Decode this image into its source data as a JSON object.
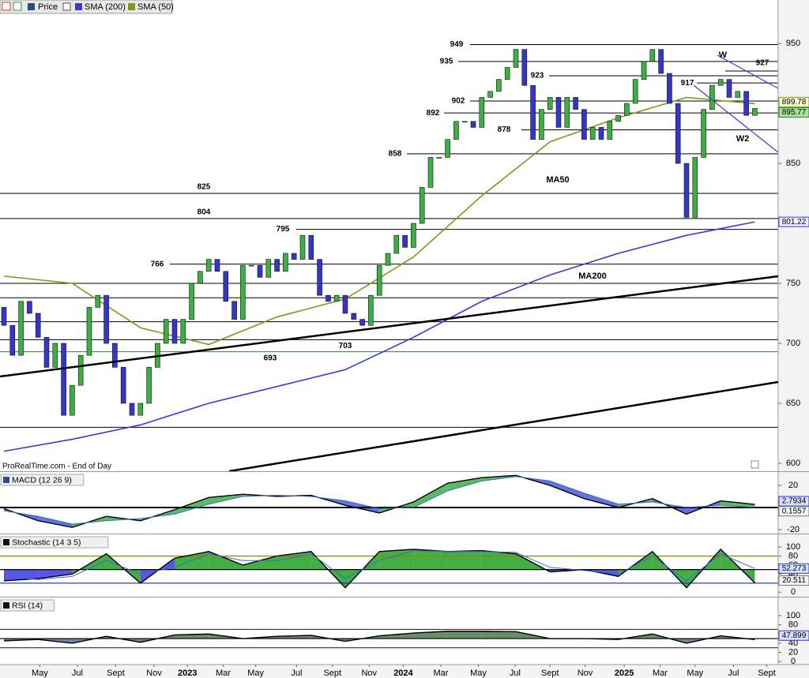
{
  "chart_data": [
    {
      "type": "candlestick",
      "name": "Price",
      "source": "ProRealTime.com - End of Day",
      "open": [
        730,
        715,
        690,
        735,
        725,
        705,
        680,
        700,
        640,
        665,
        690,
        730,
        740,
        700,
        680,
        650,
        640,
        650,
        680,
        700,
        720,
        700,
        720,
        750,
        760,
        770,
        760,
        735,
        720,
        765,
        765,
        755,
        770,
        760,
        775,
        770,
        790,
        770,
        740,
        735,
        740,
        725,
        720,
        715,
        740,
        765,
        775,
        790,
        780,
        800,
        830,
        855,
        855,
        870,
        885,
        885,
        880,
        905,
        910,
        920,
        930,
        945,
        915,
        870,
        895,
        905,
        880,
        905,
        895,
        870,
        880,
        870,
        885,
        890,
        900,
        920,
        935,
        945,
        925,
        900,
        850,
        805,
        855,
        895,
        915,
        920,
        905,
        910,
        890
      ],
      "close": [
        715,
        690,
        735,
        725,
        705,
        680,
        700,
        640,
        665,
        690,
        730,
        740,
        700,
        680,
        650,
        640,
        650,
        680,
        700,
        720,
        700,
        720,
        750,
        760,
        770,
        760,
        735,
        720,
        765,
        765,
        755,
        770,
        760,
        775,
        770,
        790,
        770,
        740,
        735,
        740,
        725,
        720,
        715,
        740,
        765,
        775,
        790,
        780,
        800,
        830,
        855,
        855,
        870,
        885,
        885,
        880,
        905,
        910,
        920,
        930,
        945,
        915,
        870,
        895,
        905,
        880,
        905,
        895,
        870,
        880,
        870,
        885,
        890,
        900,
        920,
        935,
        945,
        925,
        900,
        850,
        805,
        855,
        895,
        915,
        920,
        905,
        910,
        890,
        895.77
      ],
      "up_color": "#3cb043",
      "down_color": "#3535c8",
      "series": [
        {
          "name": "SMA (200)",
          "color": "#3a3ad6",
          "x": [
            0,
            8,
            16,
            24,
            32,
            40,
            48,
            56,
            64,
            72,
            80,
            88
          ],
          "values": [
            610,
            620,
            632,
            650,
            664,
            678,
            705,
            735,
            757,
            775,
            790,
            801.22
          ]
        },
        {
          "name": "SMA (50)",
          "color": "#7a9a20",
          "x": [
            0,
            8,
            16,
            24,
            32,
            40,
            48,
            56,
            64,
            72,
            80,
            88
          ],
          "values": [
            756,
            750,
            713,
            699,
            722,
            737,
            772,
            823,
            868,
            888,
            905,
            899.78
          ]
        }
      ],
      "levels": [
        949,
        935,
        927,
        923,
        917,
        902,
        892,
        878,
        858,
        825,
        804,
        795,
        766,
        703,
        693
      ],
      "unlabeled_levels": [
        750,
        738,
        718,
        630
      ],
      "annotations": [
        "W",
        "W2",
        "MA50",
        "MA200"
      ],
      "ylim": [
        593.4,
        986.2
      ],
      "yticks": [
        600,
        650,
        700,
        750,
        800,
        850,
        900,
        950
      ],
      "xticks": [
        {
          "value": 4.2,
          "label": "May"
        },
        {
          "value": 8.6,
          "label": "Jul"
        },
        {
          "value": 13.1,
          "label": "Sept"
        },
        {
          "value": 17.6,
          "label": "Nov"
        },
        {
          "value": 21.5,
          "label": "2023"
        },
        {
          "value": 25.7,
          "label": "Mar"
        },
        {
          "value": 29.5,
          "label": "May"
        },
        {
          "value": 34.3,
          "label": "Jul"
        },
        {
          "value": 38.5,
          "label": "Sept"
        },
        {
          "value": 42.8,
          "label": "Nov"
        },
        {
          "value": 46.8,
          "label": "2024"
        },
        {
          "value": 51.2,
          "label": "Mar"
        },
        {
          "value": 55.6,
          "label": "May"
        },
        {
          "value": 59.9,
          "label": "Jul"
        },
        {
          "value": 64,
          "label": "Sept"
        },
        {
          "value": 68.1,
          "label": "Nov"
        },
        {
          "value": 72.7,
          "label": "2025"
        },
        {
          "value": 76.9,
          "label": "Mar"
        },
        {
          "value": 81,
          "label": "May"
        },
        {
          "value": 85.5,
          "label": "Jul"
        },
        {
          "value": 89.4,
          "label": "Sept"
        }
      ]
    },
    {
      "type": "line",
      "title": "MACD (12 26 9)",
      "fill": "between",
      "fill_colors": [
        "#3cb043",
        "#4a5ad8"
      ],
      "x": [
        0,
        4,
        8,
        12,
        16,
        20,
        24,
        28,
        32,
        36,
        40,
        44,
        48,
        52,
        56,
        60,
        64,
        68,
        72,
        76,
        80,
        84,
        88
      ],
      "series": [
        {
          "color": "#000000",
          "values": [
            -1,
            -12,
            -18,
            -8,
            -12,
            -2,
            9,
            12,
            10,
            11,
            2,
            -5,
            5,
            22,
            27,
            29,
            20,
            8,
            0,
            8,
            -6,
            6,
            2.7934
          ]
        },
        {
          "color": "#3a6ad6",
          "values": [
            -3,
            -8,
            -15,
            -12,
            -10,
            -6,
            3,
            10,
            11,
            10,
            6,
            -1,
            0,
            15,
            24,
            28,
            24,
            13,
            3,
            5,
            0,
            2,
            0.1557
          ]
        }
      ],
      "levels": [
        0
      ],
      "level_colors": [
        "#000000"
      ],
      "ylim": [
        -23.6,
        32.1
      ],
      "yticks": [
        20,
        0,
        -20
      ]
    },
    {
      "type": "line",
      "title": "Stochastic (14 3 5)",
      "fill": "level",
      "fill_colors": [
        "#22a022",
        "#3a3ae0"
      ],
      "x": [
        0,
        4,
        8,
        12,
        16,
        20,
        24,
        28,
        32,
        36,
        40,
        44,
        48,
        52,
        56,
        60,
        64,
        68,
        72,
        76,
        80,
        84,
        88
      ],
      "series": [
        {
          "color": "#000000",
          "values": [
            25,
            30,
            40,
            85,
            20,
            75,
            90,
            60,
            80,
            90,
            10,
            90,
            95,
            90,
            92,
            85,
            45,
            50,
            35,
            90,
            10,
            95,
            20.511
          ]
        },
        {
          "color": "#3a6ad6",
          "values": [
            35,
            28,
            35,
            70,
            40,
            55,
            85,
            70,
            70,
            85,
            30,
            70,
            92,
            90,
            90,
            88,
            55,
            48,
            40,
            80,
            25,
            85,
            52.273
          ]
        }
      ],
      "levels": [
        80,
        50,
        20
      ],
      "level_colors": [
        "#8a8a00",
        "#000000",
        "#2020c0"
      ],
      "ylim": [
        -10,
        128
      ],
      "yticks": [
        100,
        80,
        60,
        40,
        20,
        0
      ]
    },
    {
      "type": "line",
      "title": "RSI (14)",
      "fill": "level",
      "fill_colors": [
        "#4d7a4d",
        "#5a6a9a"
      ],
      "x": [
        0,
        4,
        8,
        12,
        16,
        20,
        24,
        28,
        32,
        36,
        40,
        44,
        48,
        52,
        56,
        60,
        64,
        68,
        72,
        76,
        80,
        84,
        88
      ],
      "series": [
        {
          "color": "#000000",
          "values": [
            45,
            48,
            40,
            55,
            42,
            58,
            60,
            50,
            55,
            57,
            44,
            56,
            62,
            66,
            66,
            65,
            50,
            50,
            48,
            60,
            40,
            56,
            47.899
          ]
        }
      ],
      "levels": [
        70,
        50,
        30
      ],
      "level_colors": [
        "#333333",
        "#000000",
        "#333333"
      ],
      "ylim": [
        -6.6,
        139.5
      ],
      "yticks": [
        100,
        80,
        60,
        40,
        20,
        0
      ]
    }
  ]
}
